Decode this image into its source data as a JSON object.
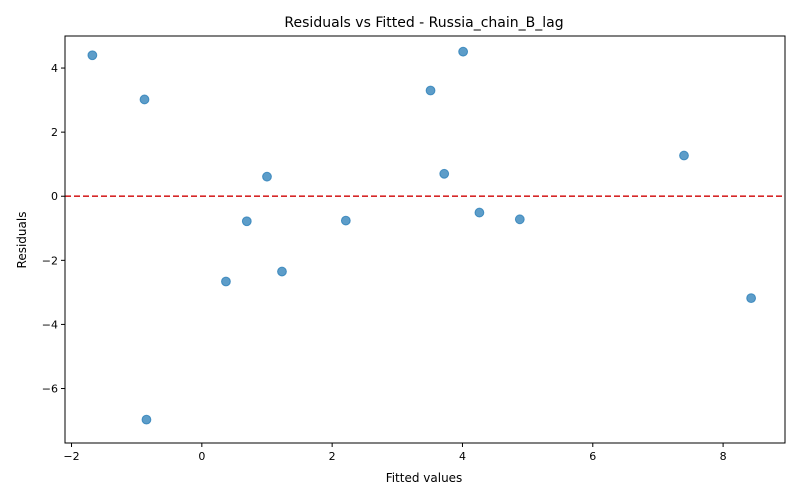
{
  "chart_data": {
    "type": "scatter",
    "title": "Residuals vs Fitted - Russia_chain_B_lag",
    "xlabel": "Fitted values",
    "ylabel": "Residuals",
    "xlim": [
      -2.1,
      8.95
    ],
    "ylim": [
      -7.7,
      5.0
    ],
    "xticks": [
      -2,
      0,
      2,
      4,
      6,
      8
    ],
    "yticks": [
      -6,
      -4,
      -2,
      0,
      2,
      4
    ],
    "xtick_labels": [
      "−2",
      "0",
      "2",
      "4",
      "6",
      "8"
    ],
    "ytick_labels": [
      "−6",
      "−4",
      "−2",
      "0",
      "2",
      "4"
    ],
    "reference_line": {
      "y": 0,
      "color": "#d62728",
      "style": "dashed"
    },
    "point_color": "#1f77b4",
    "grid": false,
    "points": [
      {
        "x": -1.68,
        "y": 4.4
      },
      {
        "x": -0.88,
        "y": 3.02
      },
      {
        "x": -0.85,
        "y": -6.97
      },
      {
        "x": 0.37,
        "y": -2.66
      },
      {
        "x": 0.69,
        "y": -0.78
      },
      {
        "x": 1.0,
        "y": 0.61
      },
      {
        "x": 1.23,
        "y": -2.35
      },
      {
        "x": 2.21,
        "y": -0.76
      },
      {
        "x": 3.51,
        "y": 3.3
      },
      {
        "x": 3.72,
        "y": 0.7
      },
      {
        "x": 4.01,
        "y": 4.51
      },
      {
        "x": 4.26,
        "y": -0.51
      },
      {
        "x": 4.88,
        "y": -0.72
      },
      {
        "x": 7.4,
        "y": 1.27
      },
      {
        "x": 8.43,
        "y": -3.18
      }
    ]
  }
}
